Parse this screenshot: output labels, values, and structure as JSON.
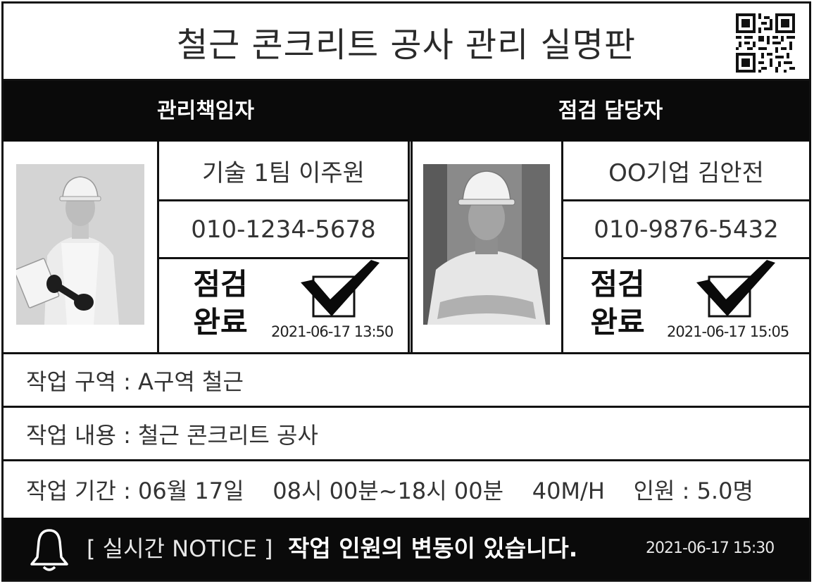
{
  "title": "철근 콘크리트 공사 관리 실명판",
  "qr_icon": "qr-code-icon",
  "manager": {
    "heading": "관리책임자",
    "name": "기술 1팀 이주원",
    "phone": "010-1234-5678",
    "status_line1": "점검",
    "status_line2": "완료",
    "checked": true,
    "timestamp": "2021-06-17 13:50"
  },
  "inspector": {
    "heading": "점검 담당자",
    "name": "OO기업 김안전",
    "phone": "010-9876-5432",
    "status_line1": "점검",
    "status_line2": "완료",
    "checked": true,
    "timestamp": "2021-06-17 15:05"
  },
  "info": {
    "area": "작업 구역 : A구역 철근",
    "content": "작업 내용 : 철근 콘크리트 공사",
    "period": "작업 기간 : 06월 17일    08시 00분~18시 00분    40M/H    인원 : 5.0명"
  },
  "notice": {
    "icon": "bell-icon",
    "label": "[ 실시간 NOTICE ]",
    "message": "작업 인원의 변동이 있습니다.",
    "timestamp": "2021-06-17 15:30"
  },
  "colors": {
    "header_bg": "#0a0a0a",
    "border": "#111111",
    "text": "#333333"
  }
}
